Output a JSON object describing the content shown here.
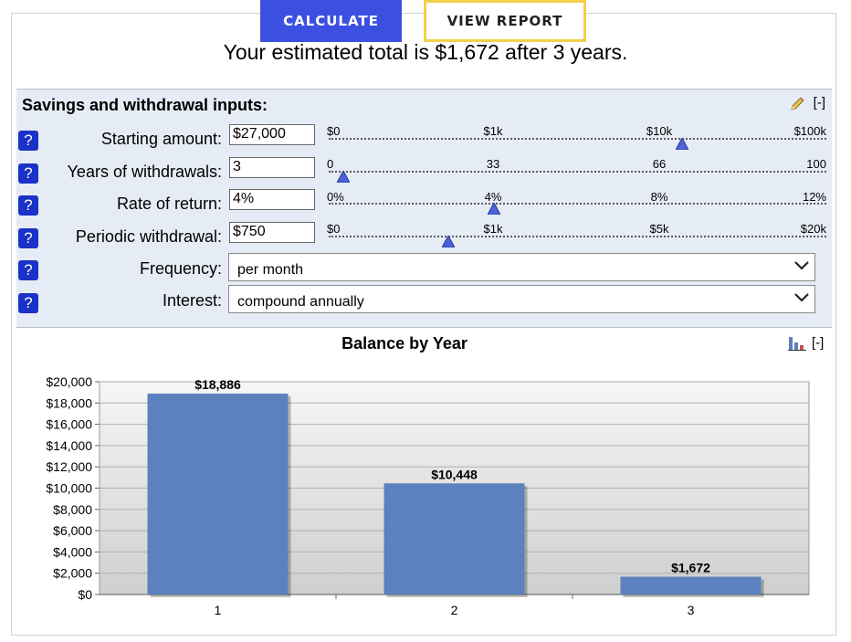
{
  "toolbar": {
    "calculate_label": "CALCULATE",
    "report_label": "VIEW REPORT"
  },
  "summary": "Your estimated total is $1,672 after 3 years.",
  "inputs": {
    "title": "Savings and withdrawal inputs:",
    "collapse_label": "[-]",
    "help_label": "?",
    "rows": [
      {
        "label": "Starting amount:",
        "value": "$27,000",
        "ticks": [
          "$0",
          "$1k",
          "$10k",
          "$100k"
        ],
        "slider_fraction": 0.71
      },
      {
        "label": "Years of withdrawals:",
        "value": "3",
        "ticks": [
          "0",
          "33",
          "66",
          "100"
        ],
        "slider_fraction": 0.03
      },
      {
        "label": "Rate of return:",
        "value": "4%",
        "ticks": [
          "0%",
          "4%",
          "8%",
          "12%"
        ],
        "slider_fraction": 0.333
      },
      {
        "label": "Periodic withdrawal:",
        "value": "$750",
        "ticks": [
          "$0",
          "$1k",
          "$5k",
          "$20k"
        ],
        "slider_fraction": 0.24
      }
    ],
    "frequency": {
      "label": "Frequency:",
      "value": "per month"
    },
    "interest": {
      "label": "Interest:",
      "value": "compound annually"
    }
  },
  "chart_header": {
    "collapse_label": "[-]"
  },
  "chart_data": {
    "type": "bar",
    "title": "Balance by Year",
    "categories": [
      "1",
      "2",
      "3"
    ],
    "values": [
      18886,
      10448,
      1672
    ],
    "value_labels": [
      "$18,886",
      "$10,448",
      "$1,672"
    ],
    "y_ticks": [
      "$0",
      "$2,000",
      "$4,000",
      "$6,000",
      "$8,000",
      "$10,000",
      "$12,000",
      "$14,000",
      "$16,000",
      "$18,000",
      "$20,000"
    ],
    "ylim": [
      0,
      20000
    ],
    "xlabel": "",
    "ylabel": "",
    "grid": true,
    "bar_color": "#5b82be"
  },
  "colors": {
    "accent": "#3b4fe0",
    "report_border": "#f2d04b",
    "help": "#1a32c8",
    "panel": "#e6ecf5"
  }
}
